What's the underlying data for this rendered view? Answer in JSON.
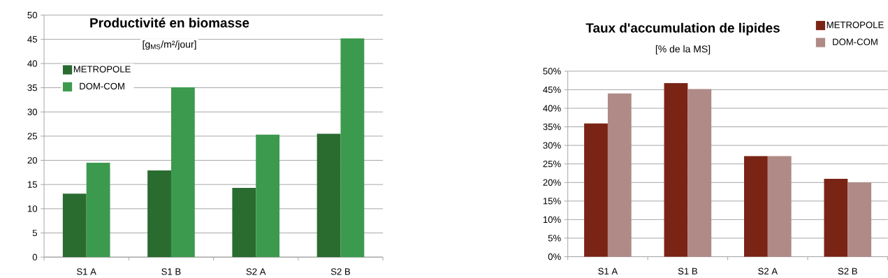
{
  "chart_data": [
    {
      "type": "bar",
      "title": "Productivité en biomasse",
      "subtitle": "[g$_{MS}$/m²/jour]",
      "categories": [
        "S1 A",
        "S1 B",
        "S2 A",
        "S2 B"
      ],
      "series": [
        {
          "name": "METROPOLE",
          "color": "#2a6b30",
          "values": [
            13.1,
            17.9,
            14.3,
            25.5
          ]
        },
        {
          "name": "DOM-COM",
          "color": "#3c9a4e",
          "values": [
            19.5,
            35.1,
            25.3,
            45.2
          ]
        }
      ],
      "ylim": [
        0,
        50
      ],
      "yticks": [
        0,
        5,
        10,
        15,
        20,
        25,
        30,
        35,
        40,
        45,
        50
      ],
      "grid": "y",
      "legend": "top left"
    },
    {
      "type": "bar",
      "title": "Taux d'accumulation de lipides",
      "subtitle": "[% de la MS]",
      "categories": [
        "S1 A",
        "S1 B",
        "S2 A",
        "S2 B"
      ],
      "series": [
        {
          "name": "METROPOLE",
          "color": "#7a2416",
          "values": [
            35.9,
            46.8,
            27.1,
            21.0
          ]
        },
        {
          "name": "DOM-COM",
          "color": "#b08a86",
          "values": [
            44.0,
            45.2,
            27.1,
            20.0
          ]
        }
      ],
      "ylim": [
        0,
        50
      ],
      "yticks": [
        {
          "value": 0,
          "label": "0%"
        },
        {
          "value": 5,
          "label": "5%"
        },
        {
          "value": 10,
          "label": "10%"
        },
        {
          "value": 15,
          "label": "15%"
        },
        {
          "value": 20,
          "label": "20%"
        },
        {
          "value": 25,
          "label": "25%"
        },
        {
          "value": 30,
          "label": "30%"
        },
        {
          "value": 35,
          "label": "35%"
        },
        {
          "value": 40,
          "label": "40%"
        },
        {
          "value": 45,
          "label": "45%"
        },
        {
          "value": 50,
          "label": "50%"
        }
      ],
      "grid": "y",
      "legend": "top right"
    }
  ]
}
